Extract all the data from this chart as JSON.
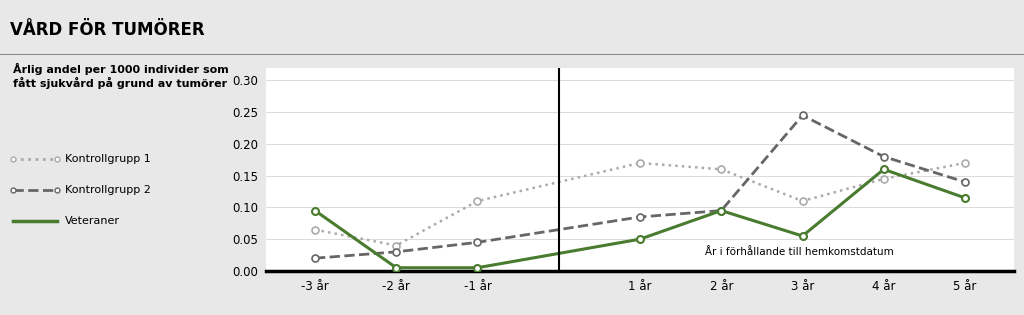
{
  "title": "VÅRD FÖR TUMÖRER",
  "ylabel_text": "Årlig andel per 1000 individer som\nfått sjukvård på grund av tumörer",
  "xlabel_note": "År i förhållande till hemkomstdatum",
  "x_labels": [
    "-3 år",
    "-2 år",
    "-1 år",
    "1 år",
    "2 år",
    "3 år",
    "4 år",
    "5 år"
  ],
  "x_values": [
    -3,
    -2,
    -1,
    1,
    2,
    3,
    4,
    5
  ],
  "kontrollgrupp1": [
    0.065,
    0.04,
    0.11,
    0.17,
    0.16,
    0.11,
    0.145,
    0.17
  ],
  "kontrollgrupp2": [
    0.02,
    0.03,
    0.045,
    0.085,
    0.095,
    0.245,
    0.18,
    0.14
  ],
  "veteraner": [
    0.095,
    0.005,
    0.005,
    0.05,
    0.095,
    0.055,
    0.16,
    0.115
  ],
  "color_k1": "#aaaaaa",
  "color_k2": "#666666",
  "color_vet": "#4a7c2f",
  "ylim": [
    0,
    0.32
  ],
  "yticks": [
    0,
    0.05,
    0.1,
    0.15,
    0.2,
    0.25,
    0.3
  ],
  "header_bg": "#d4d4d4",
  "outer_bg": "#e8e8e8",
  "plot_bg": "#ffffff",
  "title_fontsize": 12,
  "label_fontsize": 8,
  "tick_fontsize": 8.5,
  "legend_fontsize": 8,
  "note_fontsize": 7.5
}
